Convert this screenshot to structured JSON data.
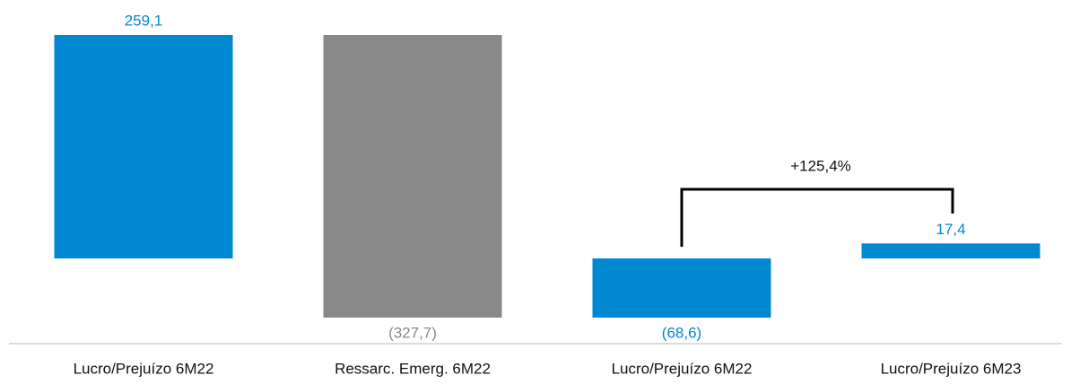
{
  "chart_data": {
    "type": "waterfall",
    "categories": [
      "Lucro/Prejuízo 6M22",
      "Ressarc. Emerg. 6M22",
      "Lucro/Prejuízo 6M22",
      "Lucro/Prejuízo 6M23"
    ],
    "values": [
      259.1,
      -327.7,
      -68.6,
      17.4
    ],
    "value_labels": [
      "259,1",
      "(327,7)",
      "(68,6)",
      "17,4"
    ],
    "measures": [
      "absolute",
      "relative",
      "absolute",
      "absolute"
    ],
    "colors": [
      "#0088d1",
      "#898989",
      "#0088d1",
      "#0088d1"
    ],
    "annotation": "+125,4%"
  }
}
